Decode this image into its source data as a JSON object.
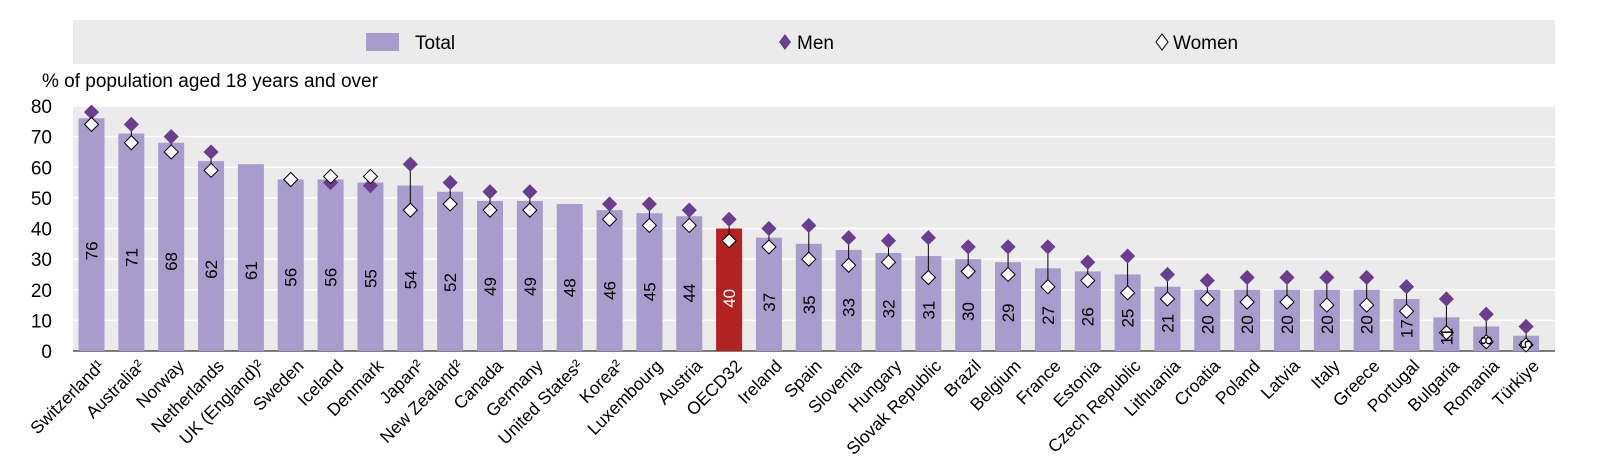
{
  "colors": {
    "total": "#a79ccb",
    "highlight": "#b22222",
    "men": "#6a3d8f",
    "women": "#ffffff",
    "plot_bg": "#ebebeb"
  },
  "legend": {
    "total": "Total",
    "men": "Men",
    "women": "Women"
  },
  "chart_data": {
    "type": "bar",
    "ylabel": "% of population aged 18 years and over",
    "ylim": [
      0,
      80
    ],
    "yticks": [
      "0",
      "10",
      "20",
      "30",
      "40",
      "50",
      "60",
      "70",
      "80"
    ],
    "grid": true,
    "legend_position": "top",
    "highlight": "OECD32",
    "categories": [
      "Switzerland¹",
      "Australia²",
      "Norway",
      "Netherlands",
      "UK (England)²",
      "Sweden",
      "Iceland",
      "Denmark",
      "Japan²",
      "New Zealand²",
      "Canada",
      "Germany",
      "United States²",
      "Korea²",
      "Luxembourg",
      "Austria",
      "OECD32",
      "Ireland",
      "Spain",
      "Slovenia",
      "Hungary",
      "Slovak Republic",
      "Brazil",
      "Belgium",
      "France",
      "Estonia",
      "Czech Republic",
      "Lithuania",
      "Croatia",
      "Poland",
      "Latvia",
      "Italy",
      "Greece",
      "Portugal",
      "Bulgaria",
      "Romania",
      "Türkiye"
    ],
    "series": [
      {
        "name": "Total",
        "values": [
          76,
          71,
          68,
          62,
          61,
          56,
          56,
          55,
          54,
          52,
          49,
          49,
          48,
          46,
          45,
          44,
          40,
          37,
          35,
          33,
          32,
          31,
          30,
          29,
          27,
          26,
          25,
          21,
          20,
          20,
          20,
          20,
          20,
          17,
          11,
          8,
          5
        ]
      },
      {
        "name": "Men",
        "values": [
          78,
          74,
          70,
          65,
          null,
          56,
          55,
          54,
          61,
          55,
          52,
          52,
          null,
          48,
          48,
          46,
          43,
          40,
          41,
          37,
          36,
          37,
          34,
          34,
          34,
          29,
          31,
          25,
          23,
          24,
          24,
          24,
          24,
          21,
          17,
          12,
          8
        ]
      },
      {
        "name": "Women",
        "values": [
          74,
          68,
          65,
          59,
          null,
          56,
          57,
          57,
          46,
          48,
          46,
          46,
          null,
          43,
          41,
          41,
          36,
          34,
          30,
          28,
          29,
          24,
          26,
          25,
          21,
          23,
          19,
          17,
          17,
          16,
          16,
          15,
          15,
          13,
          6,
          3,
          2
        ]
      }
    ]
  }
}
